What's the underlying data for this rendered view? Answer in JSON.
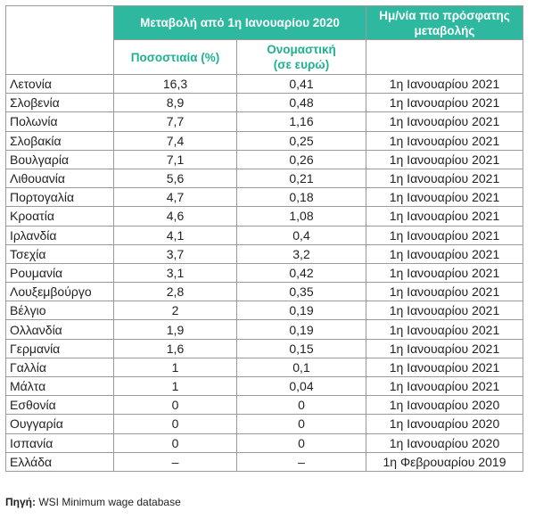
{
  "header": {
    "group_title": "Μεταβολή από 1η Ιανουαρίου 2020",
    "date_title_line1": "Ημ/νία πιο πρόσφατης",
    "date_title_line2": "μεταβολής",
    "pct_label": "Ποσοστιαία (%)",
    "nominal_label_line1": "Ονομαστική",
    "nominal_label_line2": "(σε ευρώ)"
  },
  "rows": [
    {
      "country": "Λετονία",
      "pct": "16,3",
      "nominal": "0,41",
      "date": "1η Ιανουαρίου 2021"
    },
    {
      "country": "Σλοβενία",
      "pct": "8,9",
      "nominal": "0,48",
      "date": "1η Ιανουαρίου 2021"
    },
    {
      "country": "Πολωνία",
      "pct": "7,7",
      "nominal": "1,16",
      "date": "1η Ιανουαρίου 2021"
    },
    {
      "country": "Σλοβακία",
      "pct": "7,4",
      "nominal": "0,25",
      "date": "1η Ιανουαρίου 2021"
    },
    {
      "country": "Βουλγαρία",
      "pct": "7,1",
      "nominal": "0,26",
      "date": "1η Ιανουαρίου 2021"
    },
    {
      "country": "Λιθουανία",
      "pct": "5,6",
      "nominal": "0,21",
      "date": "1η Ιανουαρίου 2021"
    },
    {
      "country": "Πορτογαλία",
      "pct": "4,7",
      "nominal": "0,18",
      "date": "1η Ιανουαρίου 2021"
    },
    {
      "country": "Κροατία",
      "pct": "4,6",
      "nominal": "1,08",
      "date": "1η Ιανουαρίου 2021"
    },
    {
      "country": "Ιρλανδία",
      "pct": "4,1",
      "nominal": "0,4",
      "date": "1η Ιανουαρίου 2021"
    },
    {
      "country": "Τσεχία",
      "pct": "3,7",
      "nominal": "3,2",
      "date": "1η Ιανουαρίου 2021"
    },
    {
      "country": "Ρουμανία",
      "pct": "3,1",
      "nominal": "0,42",
      "date": "1η Ιανουαρίου 2021"
    },
    {
      "country": "Λουξεμβούργο",
      "pct": "2,8",
      "nominal": "0,35",
      "date": "1η Ιανουαρίου 2021"
    },
    {
      "country": "Βέλγιο",
      "pct": "2",
      "nominal": "0,19",
      "date": "1η Ιανουαρίου 2021"
    },
    {
      "country": "Ολλανδία",
      "pct": "1,9",
      "nominal": "0,19",
      "date": "1η Ιανουαρίου 2021"
    },
    {
      "country": "Γερμανία",
      "pct": "1,6",
      "nominal": "0,15",
      "date": "1η Ιανουαρίου 2021"
    },
    {
      "country": "Γαλλία",
      "pct": "1",
      "nominal": "0,1",
      "date": "1η Ιανουαρίου 2021"
    },
    {
      "country": "Μάλτα",
      "pct": "1",
      "nominal": "0,04",
      "date": "1η Ιανουαρίου 2021"
    },
    {
      "country": "Εσθονία",
      "pct": "0",
      "nominal": "0",
      "date": "1η Ιανουαρίου 2020"
    },
    {
      "country": "Ουγγαρία",
      "pct": "0",
      "nominal": "0",
      "date": "1η Ιανουαρίου 2020"
    },
    {
      "country": "Ισπανία",
      "pct": "0",
      "nominal": "0",
      "date": "1η Ιανουαρίου 2020"
    },
    {
      "country": "Ελλάδα",
      "pct": "–",
      "nominal": "–",
      "date": "1η Φεβρουαρίου 2019"
    }
  ],
  "source": {
    "label": "Πηγή:",
    "text": "WSI Minimum wage database"
  }
}
